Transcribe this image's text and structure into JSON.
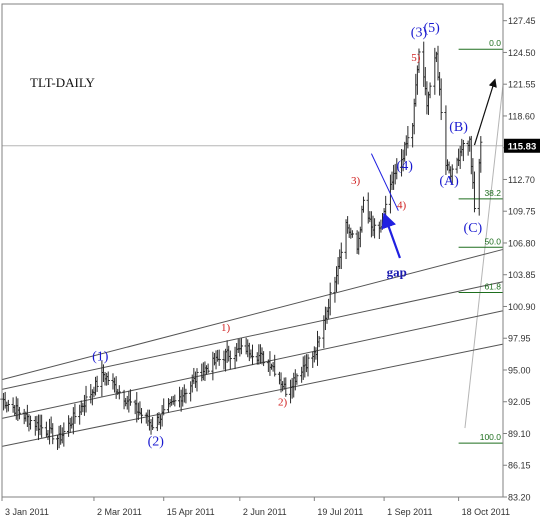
{
  "chart_data": {
    "type": "ohlc",
    "title": "TLT-DAILY",
    "colors": {
      "background": "#ffffff",
      "frame": "#808080",
      "bars": "#2a2a2a",
      "trendlines": "#555555",
      "fib_lines": "#1e6e1e",
      "fib_labels": "#1e6e1e",
      "wave_major": "#1a1ad0",
      "wave_minor": "#d02020",
      "projection_arrows": "#101010",
      "gap_arrow": "#2020e0",
      "last_price_box": "#000000",
      "last_price_text": "#ffffff"
    },
    "y_axis": {
      "range": [
        83.2,
        129.0
      ],
      "ticks": [
        "127.45",
        "124.50",
        "121.55",
        "118.60",
        "115.65",
        "112.70",
        "109.75",
        "106.80",
        "103.85",
        "100.90",
        "97.95",
        "95.00",
        "92.05",
        "89.10",
        "86.15",
        "83.20"
      ]
    },
    "x_axis": {
      "range": [
        "2011-01-03",
        "2011-11-15"
      ],
      "ticks": [
        {
          "date": "2011-01-03",
          "label": "3 Jan 2011"
        },
        {
          "date": "2011-03-02",
          "label": "2 Mar 2011"
        },
        {
          "date": "2011-04-15",
          "label": "15 Apr 2011"
        },
        {
          "date": "2011-06-02",
          "label": "2 Jun 2011"
        },
        {
          "date": "2011-07-19",
          "label": "19 Jul 2011"
        },
        {
          "date": "2011-09-01",
          "label": "1 Sep 2011"
        },
        {
          "date": "2011-10-18",
          "label": "18 Oct 2011"
        }
      ]
    },
    "last_price": "115.83",
    "price_anchors": [
      [
        "2011-01-03",
        92.3
      ],
      [
        "2011-01-20",
        90.4
      ],
      [
        "2011-02-08",
        88.6
      ],
      [
        "2011-02-24",
        92.0
      ],
      [
        "2011-03-08",
        94.6
      ],
      [
        "2011-03-28",
        91.4
      ],
      [
        "2011-04-08",
        89.9
      ],
      [
        "2011-04-26",
        92.6
      ],
      [
        "2011-05-10",
        95.0
      ],
      [
        "2011-05-24",
        96.4
      ],
      [
        "2011-06-06",
        97.0
      ],
      [
        "2011-06-22",
        95.6
      ],
      [
        "2011-07-01",
        93.1
      ],
      [
        "2011-07-12",
        95.4
      ],
      [
        "2011-07-20",
        96.6
      ],
      [
        "2011-07-27",
        100.6
      ],
      [
        "2011-08-02",
        104.2
      ],
      [
        "2011-08-08",
        108.6
      ],
      [
        "2011-08-15",
        106.2
      ],
      [
        "2011-08-19",
        110.6
      ],
      [
        "2011-08-24",
        108.1
      ],
      [
        "2011-08-29",
        107.8
      ],
      [
        "2011-09-06",
        112.4
      ],
      [
        "2011-09-12",
        114.6
      ],
      [
        "2011-09-19",
        117.8
      ],
      [
        "2011-09-23",
        124.6
      ],
      [
        "2011-09-28",
        120.0
      ],
      [
        "2011-10-04",
        124.2
      ],
      [
        "2011-10-10",
        114.3
      ],
      [
        "2011-10-14",
        113.2
      ],
      [
        "2011-10-20",
        115.8
      ],
      [
        "2011-10-25",
        116.2
      ],
      [
        "2011-10-28",
        109.9
      ],
      [
        "2011-11-01",
        115.83
      ]
    ],
    "fibonacci": [
      {
        "label": "0.0",
        "price": 124.8,
        "from": "2011-10-18",
        "to": "2011-11-15"
      },
      {
        "label": "38.2",
        "price": 110.9,
        "from": "2011-10-18",
        "to": "2011-11-15"
      },
      {
        "label": "50.0",
        "price": 106.4,
        "from": "2011-10-18",
        "to": "2011-11-15"
      },
      {
        "label": "61.8",
        "price": 102.2,
        "from": "2011-10-18",
        "to": "2011-11-15"
      },
      {
        "label": "100.0",
        "price": 88.2,
        "from": "2011-10-18",
        "to": "2011-11-15"
      }
    ],
    "trendlines": [
      {
        "from": [
          "2011-01-03",
          94.1
        ],
        "to": [
          "2011-11-15",
          106.2
        ]
      },
      {
        "from": [
          "2011-01-03",
          93.2
        ],
        "to": [
          "2011-11-15",
          103.2
        ]
      },
      {
        "from": [
          "2011-01-03",
          90.5
        ],
        "to": [
          "2011-11-15",
          100.5
        ]
      },
      {
        "from": [
          "2011-01-03",
          87.9
        ],
        "to": [
          "2011-11-15",
          97.4
        ]
      }
    ],
    "wave_labels": [
      {
        "text": "(1)",
        "date": "2011-03-06",
        "price": 95.9,
        "style": "major"
      },
      {
        "text": "(2)",
        "date": "2011-04-10",
        "price": 88.0,
        "style": "major"
      },
      {
        "text": "1)",
        "date": "2011-05-24",
        "price": 98.6,
        "style": "minor"
      },
      {
        "text": "2)",
        "date": "2011-06-29",
        "price": 91.7,
        "style": "minor"
      },
      {
        "text": "3)",
        "date": "2011-08-14",
        "price": 112.3,
        "style": "minor"
      },
      {
        "text": "4)",
        "date": "2011-09-12",
        "price": 110.0,
        "style": "minor"
      },
      {
        "text": "(3)",
        "date": "2011-09-23",
        "price": 126.0,
        "style": "major"
      },
      {
        "text": "5)",
        "date": "2011-09-21",
        "price": 123.7,
        "style": "minor"
      },
      {
        "text": "(5)",
        "date": "2011-10-01",
        "price": 126.4,
        "style": "major"
      },
      {
        "text": "(4)",
        "date": "2011-09-14",
        "price": 113.6,
        "style": "major"
      },
      {
        "text": "(A)",
        "date": "2011-10-12",
        "price": 112.2,
        "style": "major"
      },
      {
        "text": "(B)",
        "date": "2011-10-18",
        "price": 117.2,
        "style": "major"
      },
      {
        "text": "(C)",
        "date": "2011-10-27",
        "price": 107.8,
        "style": "major"
      }
    ],
    "annotations": [
      {
        "text": "gap",
        "date": "2011-09-09",
        "price": 103.7
      }
    ],
    "gap_arrow": {
      "from": [
        "2011-09-11",
        105.4
      ],
      "to": [
        "2011-09-01",
        109.5
      ]
    },
    "gap_tick": {
      "from": [
        "2011-08-24",
        115.1
      ],
      "to": [
        "2011-09-10",
        109.8
      ]
    },
    "projection_arrow": {
      "from": [
        "2011-10-28",
        115.9
      ],
      "to": [
        "2011-11-10",
        122.0
      ]
    },
    "grey_lines": [
      {
        "from": [
          "2011-01-03",
          115.83
        ],
        "to": [
          "2011-11-15",
          115.83
        ]
      },
      {
        "from": [
          "2011-10-22",
          89.6
        ],
        "to": [
          "2011-11-15",
          121.5
        ]
      }
    ]
  }
}
